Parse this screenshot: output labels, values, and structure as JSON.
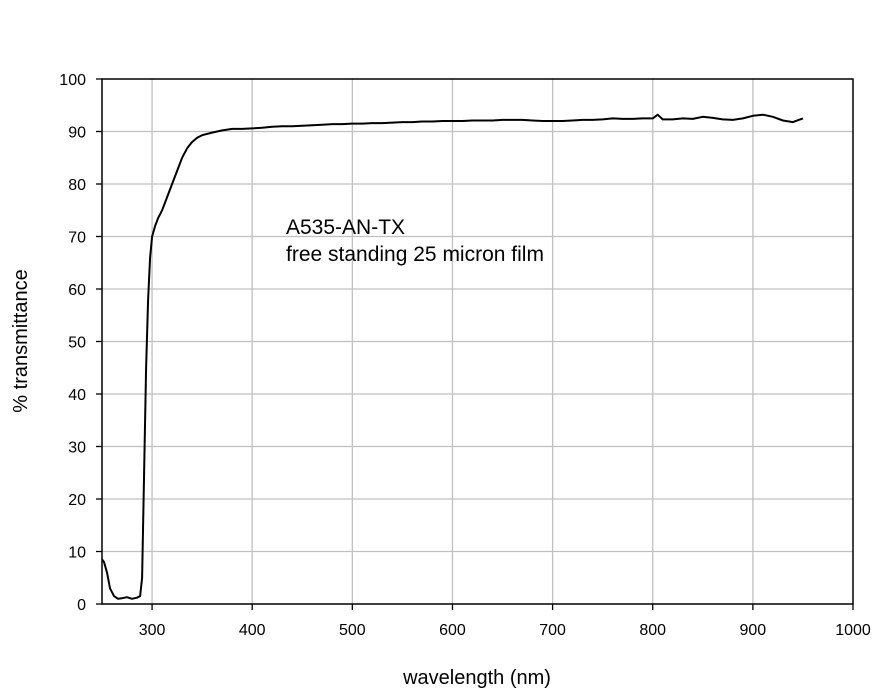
{
  "chart_data": {
    "type": "line",
    "title": "",
    "xlabel": "wavelength (nm)",
    "ylabel": "% transmittance",
    "xlim": [
      250,
      1000
    ],
    "ylim": [
      0,
      100
    ],
    "x_ticks": [
      300,
      400,
      500,
      600,
      700,
      800,
      900,
      1000
    ],
    "y_ticks": [
      0,
      10,
      20,
      30,
      40,
      50,
      60,
      70,
      80,
      90,
      100
    ],
    "grid": true,
    "legend": "none",
    "line_color": "#000000",
    "annotations": [
      "A535-AN-TX",
      "free standing 25 micron film"
    ],
    "series": [
      {
        "x": [
          250,
          252,
          255,
          258,
          262,
          266,
          270,
          275,
          280,
          285,
          288,
          290,
          292,
          294,
          296,
          298,
          300,
          303,
          306,
          310,
          315,
          320,
          325,
          330,
          335,
          340,
          345,
          350,
          360,
          370,
          380,
          390,
          400,
          410,
          420,
          430,
          440,
          450,
          460,
          470,
          480,
          490,
          500,
          510,
          520,
          530,
          540,
          550,
          560,
          570,
          580,
          590,
          600,
          610,
          620,
          630,
          640,
          650,
          660,
          670,
          680,
          690,
          700,
          710,
          720,
          730,
          740,
          750,
          760,
          770,
          780,
          790,
          800,
          805,
          810,
          820,
          830,
          840,
          850,
          860,
          870,
          880,
          890,
          900,
          910,
          920,
          930,
          940,
          950
        ],
        "y": [
          8.5,
          8.0,
          6.0,
          3.0,
          1.5,
          1.0,
          1.1,
          1.3,
          1.0,
          1.2,
          1.5,
          5.0,
          25.0,
          45.0,
          58.0,
          66.0,
          70.0,
          72.0,
          73.5,
          75.0,
          77.5,
          80.0,
          82.5,
          85.0,
          86.8,
          88.0,
          88.8,
          89.3,
          89.8,
          90.2,
          90.5,
          90.5,
          90.6,
          90.7,
          90.9,
          91.0,
          91.0,
          91.1,
          91.2,
          91.3,
          91.4,
          91.4,
          91.5,
          91.5,
          91.6,
          91.6,
          91.7,
          91.8,
          91.8,
          91.9,
          91.9,
          92.0,
          92.0,
          92.0,
          92.1,
          92.1,
          92.1,
          92.2,
          92.2,
          92.2,
          92.1,
          92.0,
          92.0,
          92.0,
          92.1,
          92.2,
          92.2,
          92.3,
          92.5,
          92.4,
          92.4,
          92.5,
          92.5,
          93.2,
          92.3,
          92.3,
          92.5,
          92.4,
          92.8,
          92.6,
          92.3,
          92.2,
          92.5,
          93.0,
          93.2,
          92.8,
          92.1,
          91.8,
          92.5
        ]
      }
    ]
  }
}
